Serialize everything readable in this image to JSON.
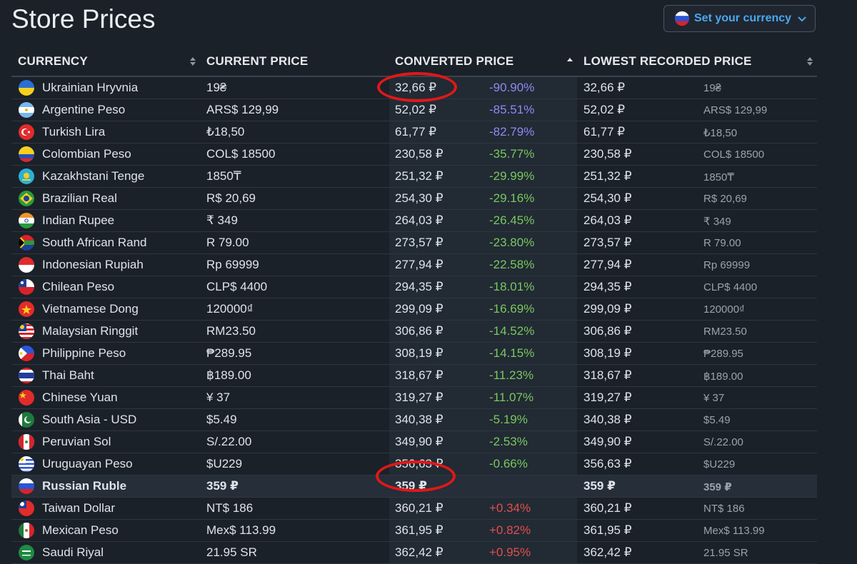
{
  "page": {
    "title": "Store Prices"
  },
  "currency_button": {
    "label": "Set your currency",
    "flag_icon": "russia-flag-icon"
  },
  "columns": {
    "currency": "CURRENCY",
    "current_price": "CURRENT PRICE",
    "converted_price": "CONVERTED PRICE",
    "lowest_recorded_price": "LOWEST RECORDED PRICE"
  },
  "rows": [
    {
      "name": "Ukrainian Hryvnia",
      "current": "19₴",
      "converted": "32,66 ₽",
      "diff": "-90.90%",
      "lowest": "32,66 ₽",
      "lowest_orig": "19₴",
      "flag": "ukraine-flag-icon"
    },
    {
      "name": "Argentine Peso",
      "current": "ARS$ 129,99",
      "converted": "52,02 ₽",
      "diff": "-85.51%",
      "lowest": "52,02 ₽",
      "lowest_orig": "ARS$ 129,99",
      "flag": "argentina-flag-icon"
    },
    {
      "name": "Turkish Lira",
      "current": "₺18,50",
      "converted": "61,77 ₽",
      "diff": "-82.79%",
      "lowest": "61,77 ₽",
      "lowest_orig": "₺18,50",
      "flag": "turkey-flag-icon"
    },
    {
      "name": "Colombian Peso",
      "current": "COL$ 18500",
      "converted": "230,58 ₽",
      "diff": "-35.77%",
      "lowest": "230,58 ₽",
      "lowest_orig": "COL$ 18500",
      "flag": "colombia-flag-icon"
    },
    {
      "name": "Kazakhstani Tenge",
      "current": "1850₸",
      "converted": "251,32 ₽",
      "diff": "-29.99%",
      "lowest": "251,32 ₽",
      "lowest_orig": "1850₸",
      "flag": "kazakhstan-flag-icon"
    },
    {
      "name": "Brazilian Real",
      "current": "R$ 20,69",
      "converted": "254,30 ₽",
      "diff": "-29.16%",
      "lowest": "254,30 ₽",
      "lowest_orig": "R$ 20,69",
      "flag": "brazil-flag-icon"
    },
    {
      "name": "Indian Rupee",
      "current": "₹ 349",
      "converted": "264,03 ₽",
      "diff": "-26.45%",
      "lowest": "264,03 ₽",
      "lowest_orig": "₹ 349",
      "flag": "india-flag-icon"
    },
    {
      "name": "South African Rand",
      "current": "R 79.00",
      "converted": "273,57 ₽",
      "diff": "-23.80%",
      "lowest": "273,57 ₽",
      "lowest_orig": "R 79.00",
      "flag": "south-africa-flag-icon"
    },
    {
      "name": "Indonesian Rupiah",
      "current": "Rp 69999",
      "converted": "277,94 ₽",
      "diff": "-22.58%",
      "lowest": "277,94 ₽",
      "lowest_orig": "Rp 69999",
      "flag": "indonesia-flag-icon"
    },
    {
      "name": "Chilean Peso",
      "current": "CLP$ 4400",
      "converted": "294,35 ₽",
      "diff": "-18.01%",
      "lowest": "294,35 ₽",
      "lowest_orig": "CLP$ 4400",
      "flag": "chile-flag-icon"
    },
    {
      "name": "Vietnamese Dong",
      "current": "120000₫",
      "converted": "299,09 ₽",
      "diff": "-16.69%",
      "lowest": "299,09 ₽",
      "lowest_orig": "120000₫",
      "flag": "vietnam-flag-icon"
    },
    {
      "name": "Malaysian Ringgit",
      "current": "RM23.50",
      "converted": "306,86 ₽",
      "diff": "-14.52%",
      "lowest": "306,86 ₽",
      "lowest_orig": "RM23.50",
      "flag": "malaysia-flag-icon"
    },
    {
      "name": "Philippine Peso",
      "current": "₱289.95",
      "converted": "308,19 ₽",
      "diff": "-14.15%",
      "lowest": "308,19 ₽",
      "lowest_orig": "₱289.95",
      "flag": "philippines-flag-icon"
    },
    {
      "name": "Thai Baht",
      "current": "฿189.00",
      "converted": "318,67 ₽",
      "diff": "-11.23%",
      "lowest": "318,67 ₽",
      "lowest_orig": "฿189.00",
      "flag": "thailand-flag-icon"
    },
    {
      "name": "Chinese Yuan",
      "current": "¥ 37",
      "converted": "319,27 ₽",
      "diff": "-11.07%",
      "lowest": "319,27 ₽",
      "lowest_orig": "¥ 37",
      "flag": "china-flag-icon"
    },
    {
      "name": "South Asia - USD",
      "current": "$5.49",
      "converted": "340,38 ₽",
      "diff": "-5.19%",
      "lowest": "340,38 ₽",
      "lowest_orig": "$5.49",
      "flag": "pakistan-flag-icon"
    },
    {
      "name": "Peruvian Sol",
      "current": "S/.22.00",
      "converted": "349,90 ₽",
      "diff": "-2.53%",
      "lowest": "349,90 ₽",
      "lowest_orig": "S/.22.00",
      "flag": "peru-flag-icon"
    },
    {
      "name": "Uruguayan Peso",
      "current": "$U229",
      "converted": "356,63 ₽",
      "diff": "-0.66%",
      "lowest": "356,63 ₽",
      "lowest_orig": "$U229",
      "flag": "uruguay-flag-icon"
    },
    {
      "name": "Russian Ruble",
      "current": "359 ₽",
      "converted": "359 ₽",
      "diff": "",
      "lowest": "359 ₽",
      "lowest_orig": "359 ₽",
      "flag": "russia-flag-icon",
      "highlight": true
    },
    {
      "name": "Taiwan Dollar",
      "current": "NT$ 186",
      "converted": "360,21 ₽",
      "diff": "+0.34%",
      "lowest": "360,21 ₽",
      "lowest_orig": "NT$ 186",
      "flag": "taiwan-flag-icon"
    },
    {
      "name": "Mexican Peso",
      "current": "Mex$ 113.99",
      "converted": "361,95 ₽",
      "diff": "+0.82%",
      "lowest": "361,95 ₽",
      "lowest_orig": "Mex$ 113.99",
      "flag": "mexico-flag-icon"
    },
    {
      "name": "Saudi Riyal",
      "current": "21.95 SR",
      "converted": "362,42 ₽",
      "diff": "+0.95%",
      "lowest": "362,42 ₽",
      "lowest_orig": "21.95 SR",
      "flag": "saudi-arabia-flag-icon"
    }
  ],
  "colors": {
    "background": "#1b2129",
    "accent": "#4aa8ee",
    "discount_large": "#8c8bf2",
    "discount": "#79c95e",
    "increase": "#e0504c",
    "annotation": "#e01818"
  }
}
